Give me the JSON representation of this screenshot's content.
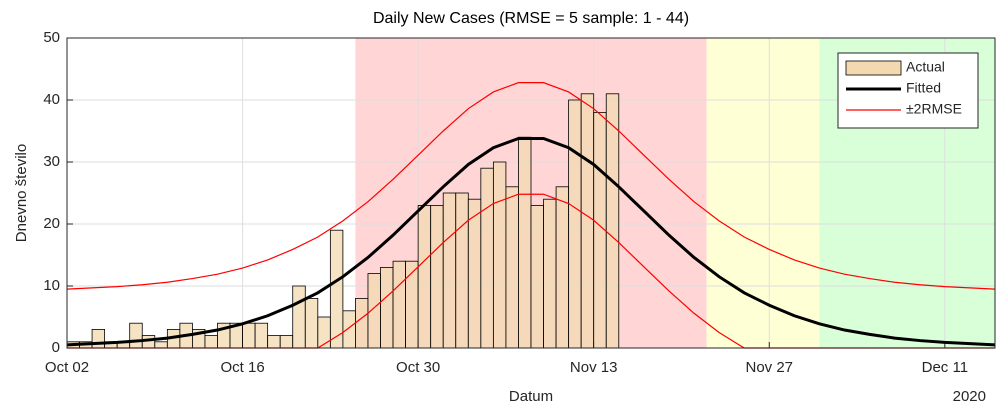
{
  "chart_data": {
    "type": "stairs",
    "title": "Daily New Cases   (RMSE =  5 sample: 1 - 44)",
    "x_label": "Datum",
    "y_label": "Dnevno število",
    "x_secondary_label": "2020",
    "xlim": [
      "2020-10-02",
      "2020-12-15"
    ],
    "xticks": [
      {
        "value": "2020-10-02",
        "label": "Oct 02"
      },
      {
        "value": "2020-10-16",
        "label": "Oct 16"
      },
      {
        "value": "2020-10-30",
        "label": "Oct 30"
      },
      {
        "value": "2020-11-13",
        "label": "Nov 13"
      },
      {
        "value": "2020-11-27",
        "label": "Nov 27"
      },
      {
        "value": "2020-12-11",
        "label": "Dec 11"
      }
    ],
    "ylim": [
      0,
      50
    ],
    "yticks": [
      0,
      10,
      20,
      30,
      40,
      50
    ],
    "grid": true,
    "legend": "top-right",
    "regions": [
      {
        "color": "#ffd5d5",
        "x": [
          "2020-10-25",
          "2020-11-22"
        ]
      },
      {
        "color": "#ffffd5",
        "x": [
          "2020-11-22",
          "2020-12-01"
        ]
      },
      {
        "color": "#d8ffd8",
        "x": [
          "2020-12-01",
          "2020-12-15"
        ]
      }
    ],
    "actual": {
      "name": "Actual",
      "color": "#f2d9b0",
      "x": [
        "2020-10-02",
        "2020-10-03",
        "2020-10-04",
        "2020-10-05",
        "2020-10-06",
        "2020-10-07",
        "2020-10-08",
        "2020-10-09",
        "2020-10-10",
        "2020-10-11",
        "2020-10-12",
        "2020-10-13",
        "2020-10-14",
        "2020-10-15",
        "2020-10-16",
        "2020-10-17",
        "2020-10-18",
        "2020-10-19",
        "2020-10-20",
        "2020-10-21",
        "2020-10-22",
        "2020-10-23",
        "2020-10-24",
        "2020-10-25",
        "2020-10-26",
        "2020-10-27",
        "2020-10-28",
        "2020-10-29",
        "2020-10-30",
        "2020-10-31",
        "2020-11-01",
        "2020-11-02",
        "2020-11-03",
        "2020-11-04",
        "2020-11-05",
        "2020-11-06",
        "2020-11-07",
        "2020-11-08",
        "2020-11-09",
        "2020-11-10",
        "2020-11-11",
        "2020-11-12",
        "2020-11-13",
        "2020-11-14"
      ],
      "values": [
        1,
        1,
        3,
        1,
        1,
        4,
        2,
        1,
        3,
        4,
        3,
        2,
        4,
        4,
        4,
        4,
        2,
        2,
        10,
        8,
        5,
        19,
        6,
        8,
        12,
        13,
        14,
        14,
        23,
        23,
        25,
        25,
        24,
        29,
        30,
        26,
        34,
        23,
        24,
        26,
        40,
        41,
        38,
        41
      ]
    },
    "fit_x": [
      "2020-10-02",
      "2020-10-04",
      "2020-10-06",
      "2020-10-08",
      "2020-10-10",
      "2020-10-12",
      "2020-10-14",
      "2020-10-16",
      "2020-10-18",
      "2020-10-20",
      "2020-10-22",
      "2020-10-24",
      "2020-10-26",
      "2020-10-28",
      "2020-10-30",
      "2020-11-01",
      "2020-11-03",
      "2020-11-05",
      "2020-11-07",
      "2020-11-09",
      "2020-11-11",
      "2020-11-13",
      "2020-11-15",
      "2020-11-17",
      "2020-11-19",
      "2020-11-21",
      "2020-11-23",
      "2020-11-25",
      "2020-11-27",
      "2020-11-29",
      "2020-12-01",
      "2020-12-03",
      "2020-12-05",
      "2020-12-07",
      "2020-12-09",
      "2020-12-11",
      "2020-12-13",
      "2020-12-15"
    ],
    "fitted": {
      "name": "Fitted",
      "color": "#000000",
      "values": [
        0.5,
        0.7,
        0.9,
        1.2,
        1.6,
        2.2,
        2.9,
        3.9,
        5.2,
        6.9,
        8.9,
        11.5,
        14.6,
        18.2,
        22.1,
        26.0,
        29.6,
        32.3,
        33.8,
        33.8,
        32.3,
        29.6,
        26.0,
        22.1,
        18.2,
        14.6,
        11.5,
        8.9,
        6.9,
        5.2,
        3.9,
        2.9,
        2.2,
        1.6,
        1.2,
        0.9,
        0.7,
        0.5
      ]
    },
    "band": {
      "name": "±2RMSE",
      "color": "#ff0000",
      "upper": [
        9.5,
        9.7,
        9.9,
        10.2,
        10.6,
        11.2,
        11.9,
        12.9,
        14.2,
        15.9,
        17.9,
        20.5,
        23.6,
        27.2,
        31.1,
        35.0,
        38.6,
        41.3,
        42.8,
        42.8,
        41.3,
        38.6,
        35.0,
        31.1,
        27.2,
        23.6,
        20.5,
        17.9,
        15.9,
        14.2,
        12.9,
        11.9,
        11.2,
        10.6,
        10.2,
        9.9,
        9.7,
        9.5
      ],
      "lower": [
        0,
        0,
        0,
        0,
        0,
        0,
        0,
        0,
        0,
        0,
        0,
        2.5,
        5.6,
        9.2,
        13.1,
        17.0,
        20.6,
        23.3,
        24.8,
        24.8,
        23.3,
        20.6,
        17.0,
        13.1,
        9.2,
        5.6,
        2.5,
        0,
        0,
        0,
        0,
        0,
        0,
        0,
        0,
        0,
        0,
        0
      ]
    }
  }
}
